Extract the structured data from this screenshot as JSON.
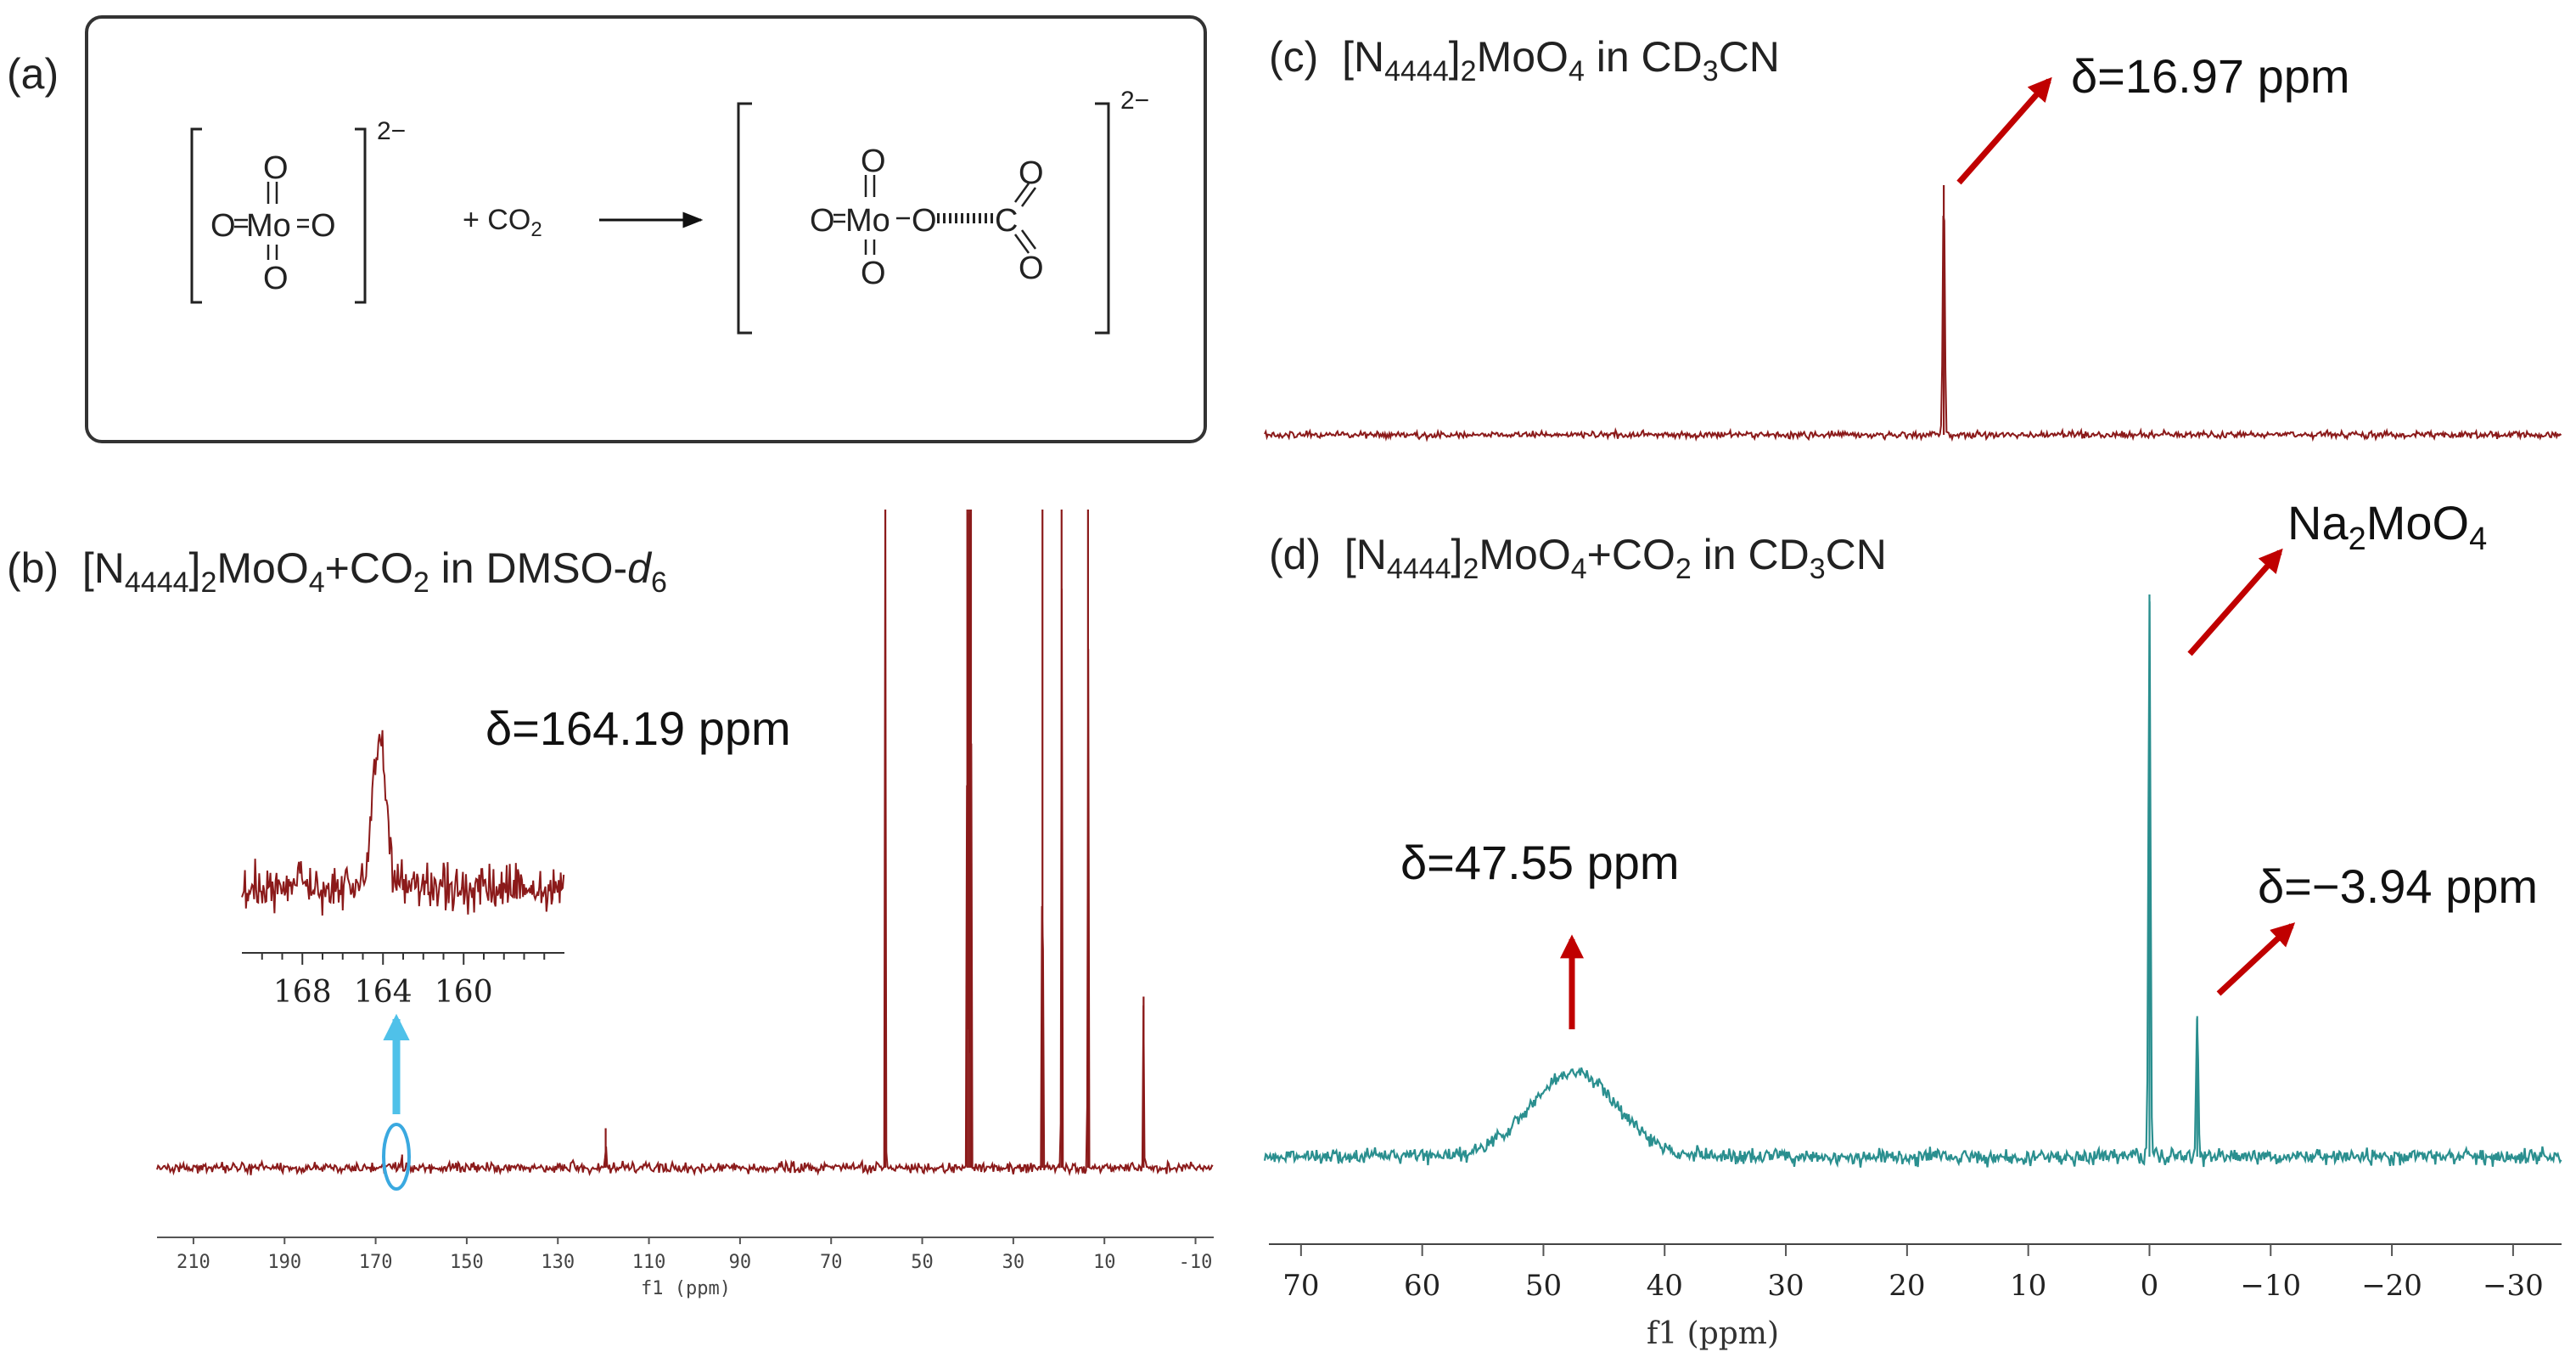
{
  "panel_a": {
    "label": "(a)",
    "reactant_charge": "2−",
    "plus_co2": "+ CO",
    "plus_co2_sub": "2",
    "product_charge": "2−",
    "atom_o": "O",
    "atom_mo": "Mo",
    "atom_c": "C"
  },
  "panel_b": {
    "label": "(b)",
    "title_pre": "[N",
    "title_sub1": "4444",
    "title_mid1": "]",
    "title_sub2": "2",
    "title_mid2": "MoO",
    "title_sub3": "4",
    "title_mid3": "+CO",
    "title_sub4": "2",
    "title_mid4": " in DMSO-",
    "title_ital": "d",
    "title_sub5": "6",
    "annotation": "δ=164.19 ppm",
    "xlabel": "f1 (ppm)"
  },
  "panel_c": {
    "label": "(c)",
    "title_pre": "[N",
    "title_sub1": "4444",
    "title_mid1": "]",
    "title_sub2": "2",
    "title_mid2": "MoO",
    "title_sub3": "4",
    "title_mid3": " in CD",
    "title_sub4": "3",
    "title_end": "CN",
    "annotation": "δ=16.97 ppm"
  },
  "panel_d": {
    "label": "(d)",
    "title_pre": "[N",
    "title_sub1": "4444",
    "title_mid1": "]",
    "title_sub2": "2",
    "title_mid2": "MoO",
    "title_sub3": "4",
    "title_mid3": "+CO",
    "title_sub4": "2",
    "title_mid4": " in CD",
    "title_sub5": "3",
    "title_end": "CN",
    "na_label_pre": "Na",
    "na_label_sub1": "2",
    "na_label_mid": "MoO",
    "na_label_sub2": "4",
    "annotation_1": "δ=47.55 ppm",
    "annotation_2": "δ=−3.94 ppm",
    "xlabel": "f1 (ppm)"
  },
  "chart_data": [
    {
      "id": "b",
      "type": "line",
      "color": "#8b1a1a",
      "xlim": [
        218,
        -14
      ],
      "x_ticks": [
        210,
        190,
        170,
        150,
        130,
        110,
        90,
        70,
        50,
        30,
        10,
        -10
      ],
      "x_tick_labels": [
        "210",
        "190",
        "170",
        "150",
        "130",
        "110",
        "90",
        "70",
        "50",
        "30",
        "10",
        "-10"
      ],
      "xlabel": "f1 (ppm)",
      "peaks": [
        {
          "x": 164.19,
          "height": 0.02
        },
        {
          "x": 119.5,
          "height": 0.06
        },
        {
          "x": 58.1,
          "height": 1.0
        },
        {
          "x": 40.1,
          "height": 1.0
        },
        {
          "x": 39.7,
          "height": 1.0
        },
        {
          "x": 39.3,
          "height": 1.0
        },
        {
          "x": 23.6,
          "height": 1.0
        },
        {
          "x": 19.4,
          "height": 1.0
        },
        {
          "x": 13.6,
          "height": 1.0
        },
        {
          "x": 1.4,
          "height": 0.26
        }
      ],
      "inset": {
        "xlim": [
          171,
          155
        ],
        "x_ticks": [
          168,
          164,
          160
        ],
        "x_tick_labels": [
          "168",
          "164",
          "160"
        ],
        "peak_x": 164.19
      }
    },
    {
      "id": "c",
      "type": "line",
      "color": "#8b1a1a",
      "peaks": [
        {
          "x": 16.97,
          "height": 1.0
        }
      ]
    },
    {
      "id": "d",
      "type": "line",
      "color": "#2a8f8f",
      "xlim": [
        73,
        -34
      ],
      "x_ticks": [
        70,
        60,
        50,
        40,
        30,
        20,
        10,
        0,
        -10,
        -20,
        -30
      ],
      "x_tick_labels": [
        "70",
        "60",
        "50",
        "40",
        "30",
        "20",
        "10",
        "0",
        "−10",
        "−20",
        "−30"
      ],
      "xlabel": "f1 (ppm)",
      "peaks": [
        {
          "x": 47.55,
          "height": 0.15,
          "broad": true
        },
        {
          "x": 0.0,
          "height": 1.0
        },
        {
          "x": -3.94,
          "height": 0.25
        }
      ]
    }
  ]
}
